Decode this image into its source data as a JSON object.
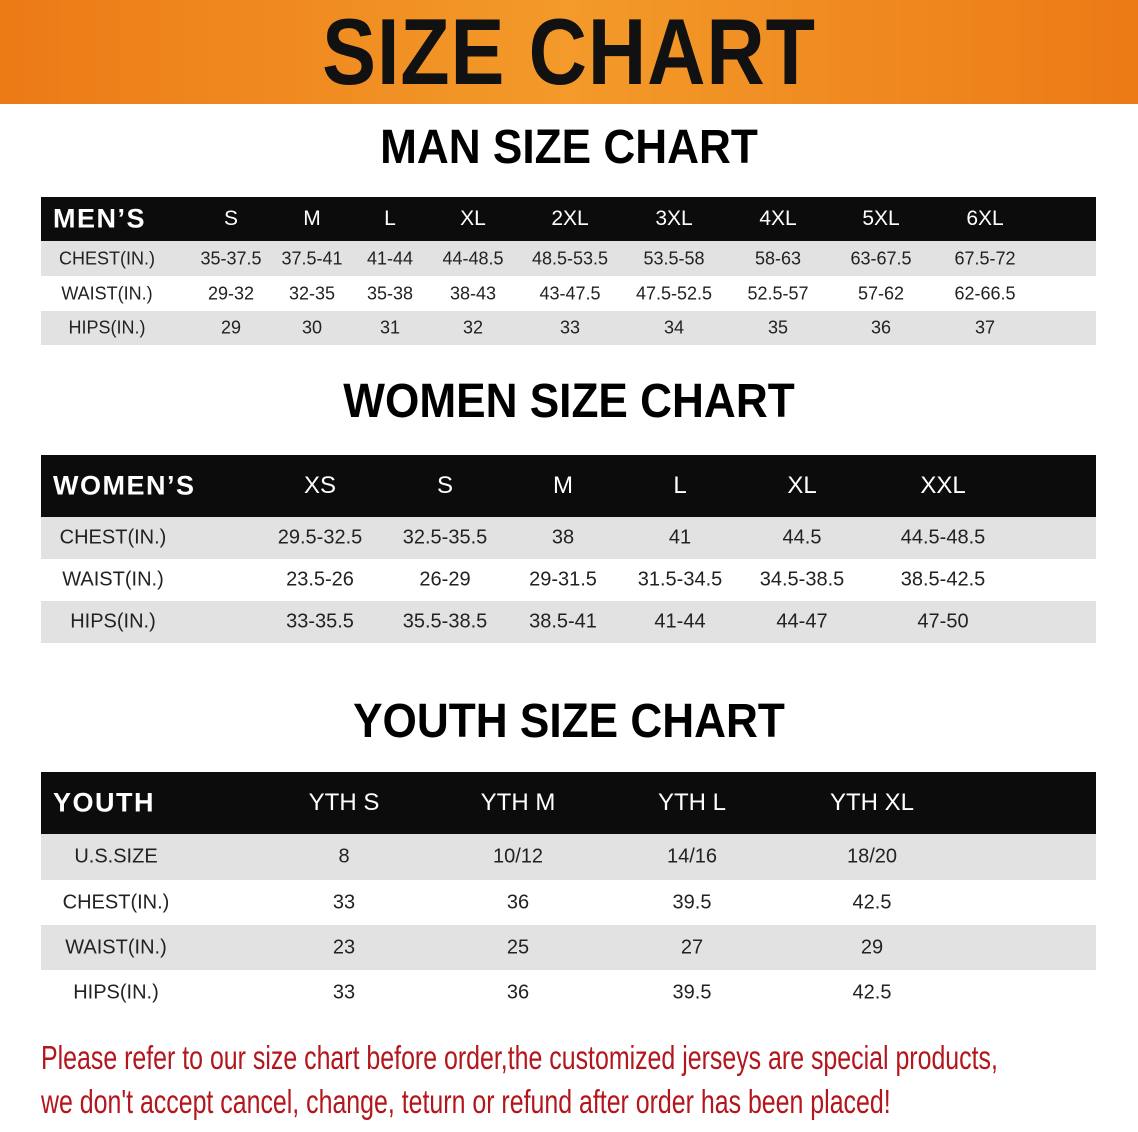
{
  "title": "SIZE CHART",
  "colors": {
    "banner": "#ee8420",
    "header_row": "#0c0c0c",
    "stripe": "#e2e2e2",
    "notice": "#b3161c"
  },
  "men": {
    "title": "MAN SIZE CHART",
    "header": [
      "MEN’S",
      "S",
      "M",
      "L",
      "XL",
      "2XL",
      "3XL",
      "4XL",
      "5XL",
      "6XL"
    ],
    "rows": [
      [
        "CHEST(IN.)",
        "35-37.5",
        "37.5-41",
        "41-44",
        "44-48.5",
        "48.5-53.5",
        "53.5-58",
        "58-63",
        "63-67.5",
        "67.5-72"
      ],
      [
        "WAIST(IN.)",
        "29-32",
        "32-35",
        "35-38",
        "38-43",
        "43-47.5",
        "47.5-52.5",
        "52.5-57",
        "57-62",
        "62-66.5"
      ],
      [
        "HIPS(IN.)",
        "29",
        "30",
        "31",
        "32",
        "33",
        "34",
        "35",
        "36",
        "37"
      ]
    ]
  },
  "women": {
    "title": "WOMEN SIZE CHART",
    "header": [
      "WOMEN’S",
      "XS",
      "S",
      "M",
      "L",
      "XL",
      "XXL"
    ],
    "rows": [
      [
        "CHEST(IN.)",
        "29.5-32.5",
        "32.5-35.5",
        "38",
        "41",
        "44.5",
        "44.5-48.5"
      ],
      [
        "WAIST(IN.)",
        "23.5-26",
        "26-29",
        "29-31.5",
        "31.5-34.5",
        "34.5-38.5",
        "38.5-42.5"
      ],
      [
        "HIPS(IN.)",
        "33-35.5",
        "35.5-38.5",
        "38.5-41",
        "41-44",
        "44-47",
        "47-50"
      ]
    ]
  },
  "youth": {
    "title": "YOUTH SIZE CHART",
    "header": [
      "YOUTH",
      "YTH S",
      "YTH M",
      "YTH L",
      "YTH XL"
    ],
    "rows": [
      [
        "U.S.SIZE",
        "8",
        "10/12",
        "14/16",
        "18/20"
      ],
      [
        "CHEST(IN.)",
        "33",
        "36",
        "39.5",
        "42.5"
      ],
      [
        "WAIST(IN.)",
        "23",
        "25",
        "27",
        "29"
      ],
      [
        "HIPS(IN.)",
        "33",
        "36",
        "39.5",
        "42.5"
      ]
    ]
  },
  "notice": {
    "line1": "Please refer to our size chart before order,the customized jerseys are special products,",
    "line2": "we don't accept cancel, change, teturn or refund after order has been placed!"
  }
}
